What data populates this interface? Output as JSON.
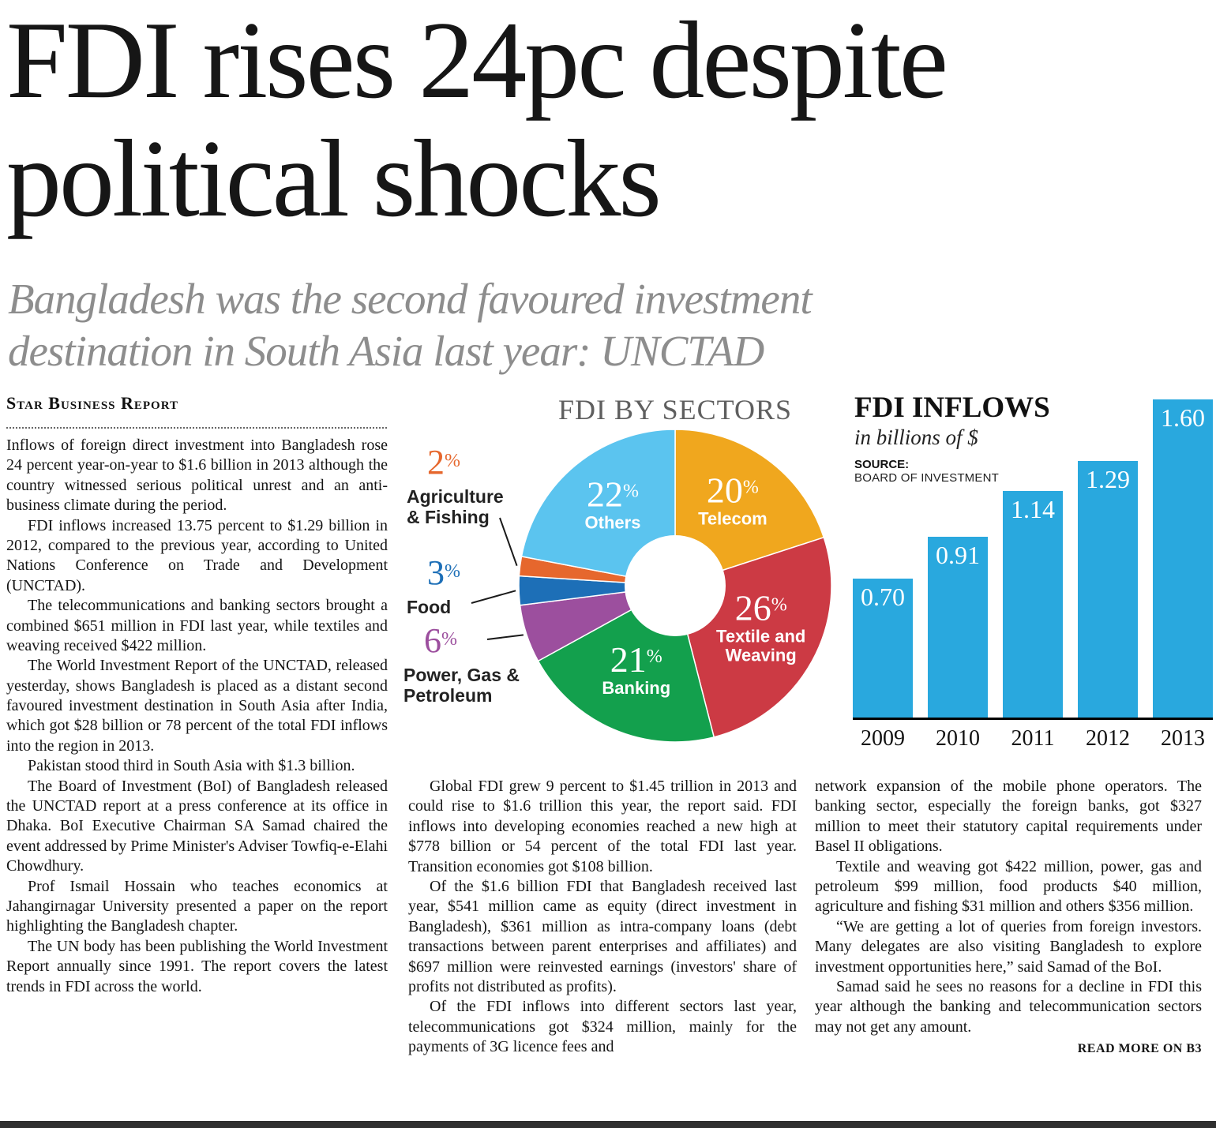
{
  "page": {
    "headline_lines": [
      "FDI rises 24pc despite",
      "political shocks"
    ],
    "subheadline_lines": [
      "Bangladesh was the second favoured investment",
      "destination in South Asia last year: UNCTAD"
    ],
    "byline": "Star Business Report",
    "read_more": "READ MORE ON B3"
  },
  "article": {
    "left_column": [
      "Inflows of foreign direct investment into Bangladesh rose 24 percent year-on-year to $1.6 billion in 2013 although the country witnessed serious political unrest and an anti-business climate during the period.",
      "FDI inflows increased 13.75 percent to $1.29 billion in 2012, compared to the previous year, according to United Nations Conference on Trade and Development (UNCTAD).",
      "The telecommunications and banking sectors brought a combined $651 million in FDI last year, while textiles and weaving received $422 million.",
      "The World Investment Report of the UNCTAD, released yesterday, shows Bangladesh is placed as a distant second favoured investment destination in South Asia after India, which got $28 billion or 78 percent of the total FDI inflows into the region in 2013.",
      "Pakistan stood third in South Asia with $1.3 billion.",
      "The Board of Investment (BoI) of Bangladesh released the UNCTAD report at a press conference at its office in Dhaka. BoI Executive Chairman SA Samad chaired the event addressed by Prime Minister's Adviser Towfiq-e-Elahi Chowdhury.",
      "Prof Ismail Hossain who teaches economics at Jahangirnagar University presented a paper on the report highlighting the Bangladesh chapter.",
      "The UN body has been publishing the World Investment Report annually since 1991. The report covers the latest trends in FDI across the world."
    ],
    "middle_column": [
      "Global FDI grew 9 percent to $1.45 trillion in 2013 and could rise to $1.6 trillion this year, the report said. FDI inflows into developing economies reached a new high at $778 billion or 54 percent of the total FDI last year. Transition economies got $108 billion.",
      "Of the $1.6 billion FDI that Bangladesh received last year, $541 million came as equity (direct investment in Bangladesh), $361 million as intra-company loans (debt transactions between parent enterprises and affiliates) and $697 million were reinvested earnings (investors' share of profits not distributed as profits).",
      "Of the FDI inflows into different sectors last year, telecommunications got $324 million, mainly for the payments of 3G licence fees and"
    ],
    "right_column": [
      "network expansion of the mobile phone operators. The banking sector, especially the foreign banks, got $327 million to meet their statutory capital requirements under Basel II obligations.",
      "Textile and weaving got $422 million, power, gas and petroleum $99 million, food products $40 million, agriculture and fishing $31 million and others $356 million.",
      "“We are getting a lot of queries from foreign investors. Many delegates are also visiting Bangladesh to explore investment opportunities here,” said Samad of the BoI.",
      "Samad said he sees no reasons for a decline in FDI this year although the banking and telecommunication sectors may not get any amount."
    ]
  },
  "chart_data": [
    {
      "type": "pie",
      "title": "FDI BY SECTORS",
      "donut": true,
      "unit": "%",
      "segments": [
        {
          "label": "Telecom",
          "label_lines": [
            "Telecom"
          ],
          "value": 20,
          "color": "#F0A71E",
          "callout": false
        },
        {
          "label": "Textile and Weaving",
          "label_lines": [
            "Textile and",
            "Weaving"
          ],
          "value": 26,
          "color": "#CC3A44",
          "callout": false
        },
        {
          "label": "Banking",
          "label_lines": [
            "Banking"
          ],
          "value": 21,
          "color": "#13A04D",
          "callout": false
        },
        {
          "label": "Power, Gas & Petroleum",
          "label_lines": [
            "Power, Gas &",
            "Petroleum"
          ],
          "value": 6,
          "color": "#9C4F9E",
          "callout": true
        },
        {
          "label": "Food",
          "label_lines": [
            "Food"
          ],
          "value": 3,
          "color": "#1D6FB7",
          "callout": true
        },
        {
          "label": "Agriculture & Fishing",
          "label_lines": [
            "Agriculture",
            "& Fishing"
          ],
          "value": 2,
          "color": "#E6672D",
          "callout": true
        },
        {
          "label": "Others",
          "label_lines": [
            "Others"
          ],
          "value": 22,
          "color": "#5BC4EF",
          "callout": false
        }
      ]
    },
    {
      "type": "bar",
      "title": "FDI INFLOWS",
      "subtitle": "in billions of $",
      "source_label": "SOURCE:",
      "source": "BOARD OF INVESTMENT",
      "categories": [
        "2009",
        "2010",
        "2011",
        "2012",
        "2013"
      ],
      "values": [
        0.7,
        0.91,
        1.14,
        1.29,
        1.6
      ],
      "value_labels": [
        "0.70",
        "0.91",
        "1.14",
        "1.29",
        "1.60"
      ],
      "bar_color": "#29A8DE",
      "ylim": [
        0,
        1.6
      ],
      "grid": false,
      "legend": "none"
    }
  ]
}
